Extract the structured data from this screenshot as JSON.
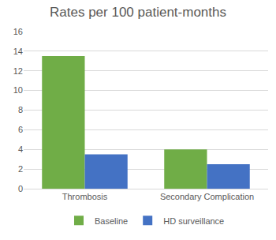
{
  "chart_data": {
    "type": "bar",
    "title": "Rates per 100 patient-months",
    "categories": [
      "Thrombosis",
      "Secondary Complication"
    ],
    "series": [
      {
        "name": "Baseline",
        "color": "#70ad47",
        "values": [
          13.5,
          4
        ]
      },
      {
        "name": "HD surveillance",
        "color": "#4472c4",
        "values": [
          3.5,
          2.5
        ]
      }
    ],
    "ylim": [
      0,
      16
    ],
    "yticks": [
      0,
      2,
      4,
      6,
      8,
      10,
      12,
      14,
      16
    ],
    "grid": true,
    "legend": "bottom"
  }
}
